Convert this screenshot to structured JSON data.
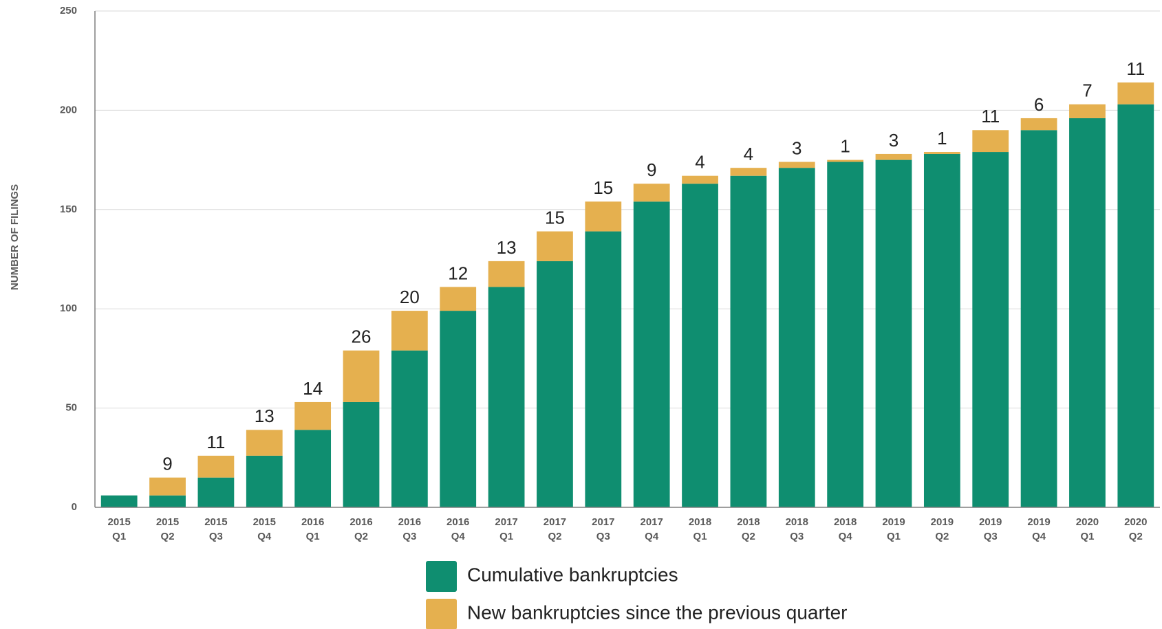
{
  "chart_data": {
    "type": "stacked-bar",
    "y_label": "NUMBER OF FILINGS",
    "categories": [
      [
        "2015",
        "Q1"
      ],
      [
        "2015",
        "Q2"
      ],
      [
        "2015",
        "Q3"
      ],
      [
        "2015",
        "Q4"
      ],
      [
        "2016",
        "Q1"
      ],
      [
        "2016",
        "Q2"
      ],
      [
        "2016",
        "Q3"
      ],
      [
        "2016",
        "Q4"
      ],
      [
        "2017",
        "Q1"
      ],
      [
        "2017",
        "Q2"
      ],
      [
        "2017",
        "Q3"
      ],
      [
        "2017",
        "Q4"
      ],
      [
        "2018",
        "Q1"
      ],
      [
        "2018",
        "Q2"
      ],
      [
        "2018",
        "Q3"
      ],
      [
        "2018",
        "Q4"
      ],
      [
        "2019",
        "Q1"
      ],
      [
        "2019",
        "Q2"
      ],
      [
        "2019",
        "Q3"
      ],
      [
        "2019",
        "Q4"
      ],
      [
        "2020",
        "Q1"
      ],
      [
        "2020",
        "Q2"
      ]
    ],
    "series": [
      {
        "name": "Cumulative bankruptcies",
        "color": "#0f8e70",
        "values": [
          6,
          6,
          15,
          26,
          39,
          53,
          79,
          99,
          111,
          124,
          139,
          154,
          163,
          167,
          171,
          174,
          175,
          178,
          179,
          190,
          196,
          203
        ]
      },
      {
        "name": "New bankruptcies since the previous quarter",
        "color": "#e5b04f",
        "values": [
          null,
          9,
          11,
          13,
          14,
          26,
          20,
          12,
          13,
          15,
          15,
          9,
          4,
          4,
          3,
          1,
          3,
          1,
          11,
          6,
          7,
          11
        ]
      }
    ],
    "ylim": [
      0,
      250
    ],
    "yticks": [
      0,
      50,
      100,
      150,
      200,
      250
    ],
    "grid": true
  }
}
